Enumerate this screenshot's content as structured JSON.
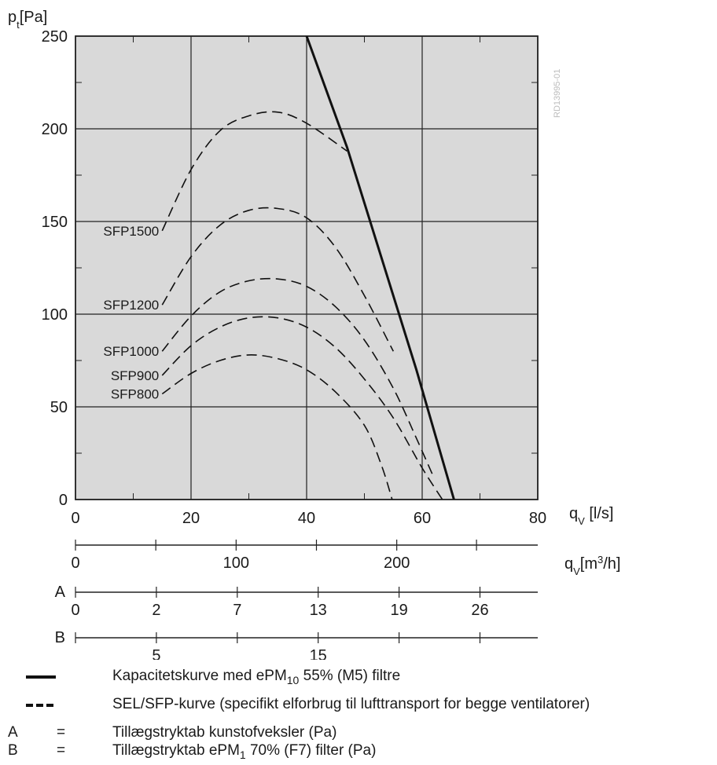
{
  "chart_data": {
    "type": "line",
    "y_axis": {
      "label_main": "p",
      "label_sub": "t",
      "label_unit": "[Pa]",
      "ylim": [
        0,
        250
      ],
      "ticks": [
        "0",
        "50",
        "100",
        "150",
        "200",
        "250"
      ]
    },
    "x_axis": {
      "label_main": "q",
      "label_sub": "V",
      "label_unit": "[l/s]",
      "xlim": [
        0,
        80
      ],
      "ticks": [
        "0",
        "20",
        "40",
        "60",
        "80"
      ]
    },
    "secondary_axes": [
      {
        "id": "m3h",
        "unit_label": "q",
        "unit_sub": "V",
        "unit_rest": "[m",
        "unit_sup": "3",
        "unit_end": "/h]",
        "letter": "",
        "ticks": [
          {
            "x": 0,
            "label": "0"
          },
          {
            "x": 13.9,
            "label": ""
          },
          {
            "x": 27.8,
            "label": "100"
          },
          {
            "x": 41.7,
            "label": ""
          },
          {
            "x": 55.6,
            "label": "200"
          },
          {
            "x": 69.4,
            "label": ""
          }
        ]
      },
      {
        "id": "A",
        "letter": "A",
        "ticks": [
          {
            "x": 0,
            "label": "0"
          },
          {
            "x": 14,
            "label": "2"
          },
          {
            "x": 28,
            "label": "7"
          },
          {
            "x": 42,
            "label": "13"
          },
          {
            "x": 56,
            "label": "19"
          },
          {
            "x": 70,
            "label": "26"
          }
        ]
      },
      {
        "id": "B",
        "letter": "B",
        "ticks": [
          {
            "x": 0,
            "label": ""
          },
          {
            "x": 14,
            "label": "5"
          },
          {
            "x": 28,
            "label": ""
          },
          {
            "x": 42,
            "label": "15"
          },
          {
            "x": 56,
            "label": ""
          },
          {
            "x": 70,
            "label": ""
          }
        ]
      }
    ],
    "capacity_curve": {
      "style": "solid",
      "points": [
        [
          40,
          250
        ],
        [
          47,
          190
        ],
        [
          53,
          130
        ],
        [
          59,
          70
        ],
        [
          65.5,
          0
        ]
      ]
    },
    "series": [
      {
        "name": "SFP1500",
        "style": "dashed",
        "points": [
          [
            15,
            145
          ],
          [
            20,
            178
          ],
          [
            25,
            199
          ],
          [
            30,
            207
          ],
          [
            35,
            209
          ],
          [
            40,
            203
          ],
          [
            47,
            188
          ]
        ]
      },
      {
        "name": "SFP1200",
        "style": "dashed",
        "points": [
          [
            15,
            105
          ],
          [
            20,
            131
          ],
          [
            25,
            148
          ],
          [
            30,
            156
          ],
          [
            35,
            157
          ],
          [
            40,
            152
          ],
          [
            45,
            136
          ],
          [
            50,
            110
          ],
          [
            55,
            80
          ]
        ]
      },
      {
        "name": "SFP1000",
        "style": "dashed",
        "points": [
          [
            15,
            80
          ],
          [
            20,
            99
          ],
          [
            25,
            112
          ],
          [
            30,
            118
          ],
          [
            35,
            119
          ],
          [
            40,
            115
          ],
          [
            45,
            104
          ],
          [
            50,
            86
          ],
          [
            55,
            60
          ],
          [
            59,
            33
          ],
          [
            62,
            12
          ]
        ]
      },
      {
        "name": "SFP900",
        "style": "dashed",
        "points": [
          [
            15,
            67
          ],
          [
            20,
            83
          ],
          [
            25,
            93
          ],
          [
            30,
            98
          ],
          [
            35,
            98
          ],
          [
            40,
            93
          ],
          [
            45,
            82
          ],
          [
            50,
            65
          ],
          [
            55,
            44
          ],
          [
            60,
            17
          ],
          [
            63.5,
            0
          ]
        ]
      },
      {
        "name": "SFP800",
        "style": "dashed",
        "points": [
          [
            15,
            57
          ],
          [
            20,
            68
          ],
          [
            25,
            75
          ],
          [
            30,
            78
          ],
          [
            35,
            76
          ],
          [
            40,
            70
          ],
          [
            45,
            58
          ],
          [
            50,
            40
          ],
          [
            53,
            18
          ],
          [
            54.8,
            0
          ]
        ]
      }
    ],
    "drawing_code": "RD13995-01",
    "grid": true
  },
  "legend": {
    "solid_pre": "Kapacitetskurve med ePM",
    "solid_sub": "10",
    "solid_post": " 55% (M5) filtre",
    "dashed": "SEL/SFP-kurve (specifikt elforbrug til lufttransport for begge ventilatorer)",
    "a_letter": "A",
    "a_eq": "=",
    "a_text": "Tillægstryktab kunstofveksler (Pa)",
    "b_letter": "B",
    "b_eq": "=",
    "b_pre": "Tillægstryktab ePM",
    "b_sub": "1",
    "b_post": " 70% (F7) filter (Pa)"
  },
  "colors": {
    "plot_bg": "#d9d9d9",
    "grid": "#222222",
    "curve": "#111111"
  }
}
